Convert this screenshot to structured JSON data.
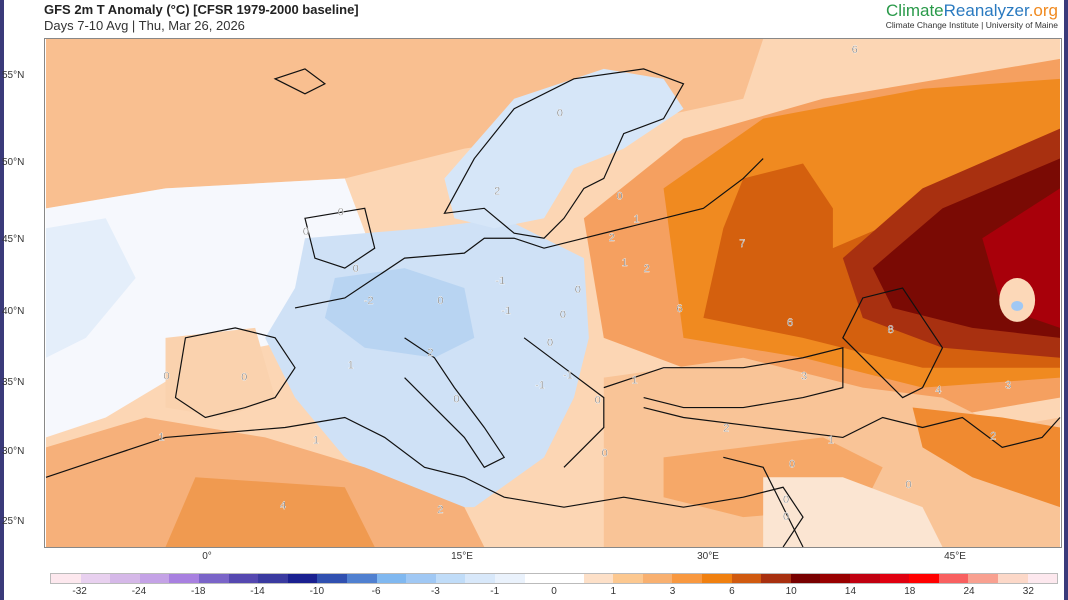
{
  "header": {
    "title": "GFS 2m T Anomaly (°C) [CFSR 1979-2000 baseline]",
    "subtitle": "Days 7-10 Avg | Thu, Mar 26, 2026"
  },
  "logo": {
    "part1": "Climate",
    "part2": "Reanalyzer",
    "part3": ".org",
    "tagline": "Climate Change Institute | University of Maine"
  },
  "axes": {
    "lat_labels": [
      "55°N",
      "50°N",
      "45°N",
      "40°N",
      "35°N",
      "30°N",
      "25°N"
    ],
    "lon_labels": [
      "0°",
      "15°E",
      "30°E",
      "45°E"
    ]
  },
  "map_labels": [
    "7",
    "6",
    "6",
    "8",
    "2",
    "1",
    "2",
    "1",
    "0",
    "1",
    "3",
    "4",
    "3",
    "2",
    "1",
    "2",
    "0",
    "0",
    "0",
    "0",
    "4",
    "1",
    "0",
    "0",
    "1",
    "2",
    "0",
    "2",
    "1",
    "-2",
    "0",
    "-1",
    "-1",
    "0",
    "0",
    "0",
    "-1",
    "-1",
    "0",
    "0",
    "0",
    "0",
    "2",
    "0",
    "6",
    "0"
  ],
  "colorbar": {
    "colors": [
      "#fde8ee",
      "#e8d0ef",
      "#d5b8e8",
      "#c4a2e6",
      "#a880e0",
      "#7a64c8",
      "#5548b0",
      "#3a3aa0",
      "#1a2090",
      "#3050b0",
      "#5080d0",
      "#80b8f0",
      "#a0c8f4",
      "#c0dcf8",
      "#d8e8fa",
      "#eaf2fc",
      "#ffffff",
      "#ffffff",
      "#fde0c8",
      "#fcc890",
      "#f8b070",
      "#f89840",
      "#f08010",
      "#d05a10",
      "#a83010",
      "#780000",
      "#980000",
      "#c00010",
      "#e00010",
      "#ff0000",
      "#f86060",
      "#f8a090",
      "#fcd8c8",
      "#fde8ee"
    ],
    "labels": [
      "-32",
      "-24",
      "-18",
      "-14",
      "-10",
      "-6",
      "-3",
      "-1",
      "0",
      "1",
      "3",
      "6",
      "10",
      "14",
      "18",
      "24",
      "32"
    ]
  }
}
